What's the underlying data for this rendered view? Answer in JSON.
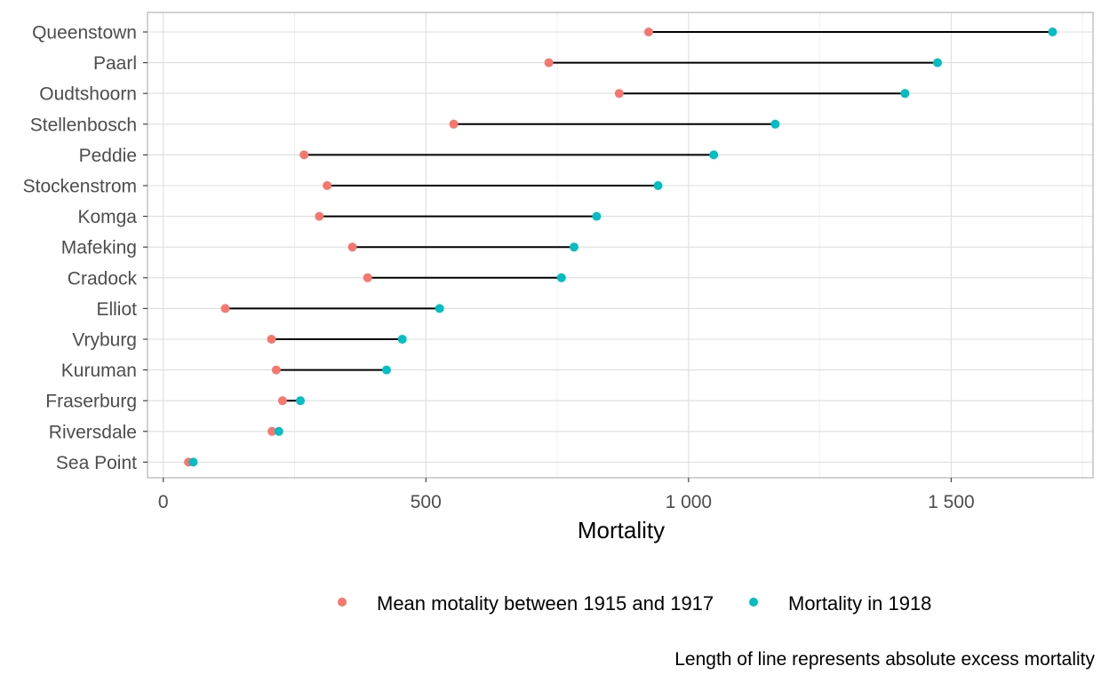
{
  "chart_data": {
    "type": "dumbbell",
    "title": "",
    "xlabel": "Mortality",
    "ylabel": "",
    "xlim": [
      -30,
      1770
    ],
    "x_ticks": [
      {
        "value": 0,
        "label": "0"
      },
      {
        "value": 500,
        "label": "500"
      },
      {
        "value": 1000,
        "label": "1 000"
      },
      {
        "value": 1500,
        "label": "1 500"
      }
    ],
    "x_minor": [
      250,
      750,
      1250,
      1750
    ],
    "grid": true,
    "legend_position": "bottom",
    "caption": "Length of line represents absolute excess mortality",
    "categories": [
      "Queenstown",
      "Paarl",
      "Oudtshoorn",
      "Stellenbosch",
      "Peddie",
      "Stockenstrom",
      "Komga",
      "Mafeking",
      "Cradock",
      "Elliot",
      "Vryburg",
      "Kuruman",
      "Fraserburg",
      "Riversdale",
      "Sea Point"
    ],
    "series": [
      {
        "name": "Mean motality between 1915 and 1917",
        "color": "#F8766D",
        "values": [
          924,
          734,
          868,
          553,
          268,
          312,
          297,
          360,
          389,
          118,
          206,
          215,
          227,
          207,
          48
        ]
      },
      {
        "name": "Mortality in 1918",
        "color": "#00BFC4",
        "values": [
          1693,
          1474,
          1412,
          1165,
          1048,
          942,
          825,
          782,
          758,
          526,
          455,
          425,
          261,
          220,
          57
        ]
      }
    ],
    "segment_color": "#000000"
  }
}
